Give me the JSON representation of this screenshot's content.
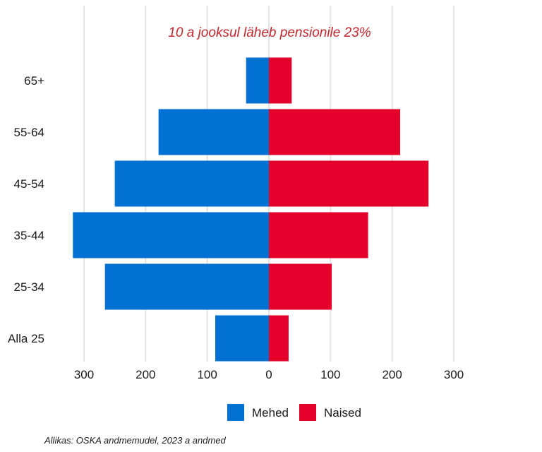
{
  "chart_data": {
    "type": "bar",
    "orientation": "horizontal",
    "layout": "population-pyramid",
    "annotation": "10 a jooksul läheb pensionile 23%",
    "categories": [
      "Alla 25",
      "25-34",
      "35-44",
      "45-54",
      "55-64",
      "65+"
    ],
    "series": [
      {
        "name": "Mehed",
        "color": "#0070d2",
        "direction": "left",
        "values": [
          87,
          266,
          318,
          250,
          179,
          37
        ]
      },
      {
        "name": "Naised",
        "color": "#e4002b",
        "direction": "right",
        "values": [
          32,
          102,
          161,
          259,
          213,
          37
        ]
      }
    ],
    "xlim": [
      -300,
      300
    ],
    "x_ticks": [
      -300,
      -200,
      -100,
      0,
      100,
      200,
      300
    ],
    "x_tick_labels": [
      "300",
      "200",
      "100",
      "0",
      "100",
      "200",
      "300"
    ],
    "grid": true,
    "legend_position": "bottom"
  },
  "source": "Allikas: OSKA andmemudel, 2023 a andmed"
}
